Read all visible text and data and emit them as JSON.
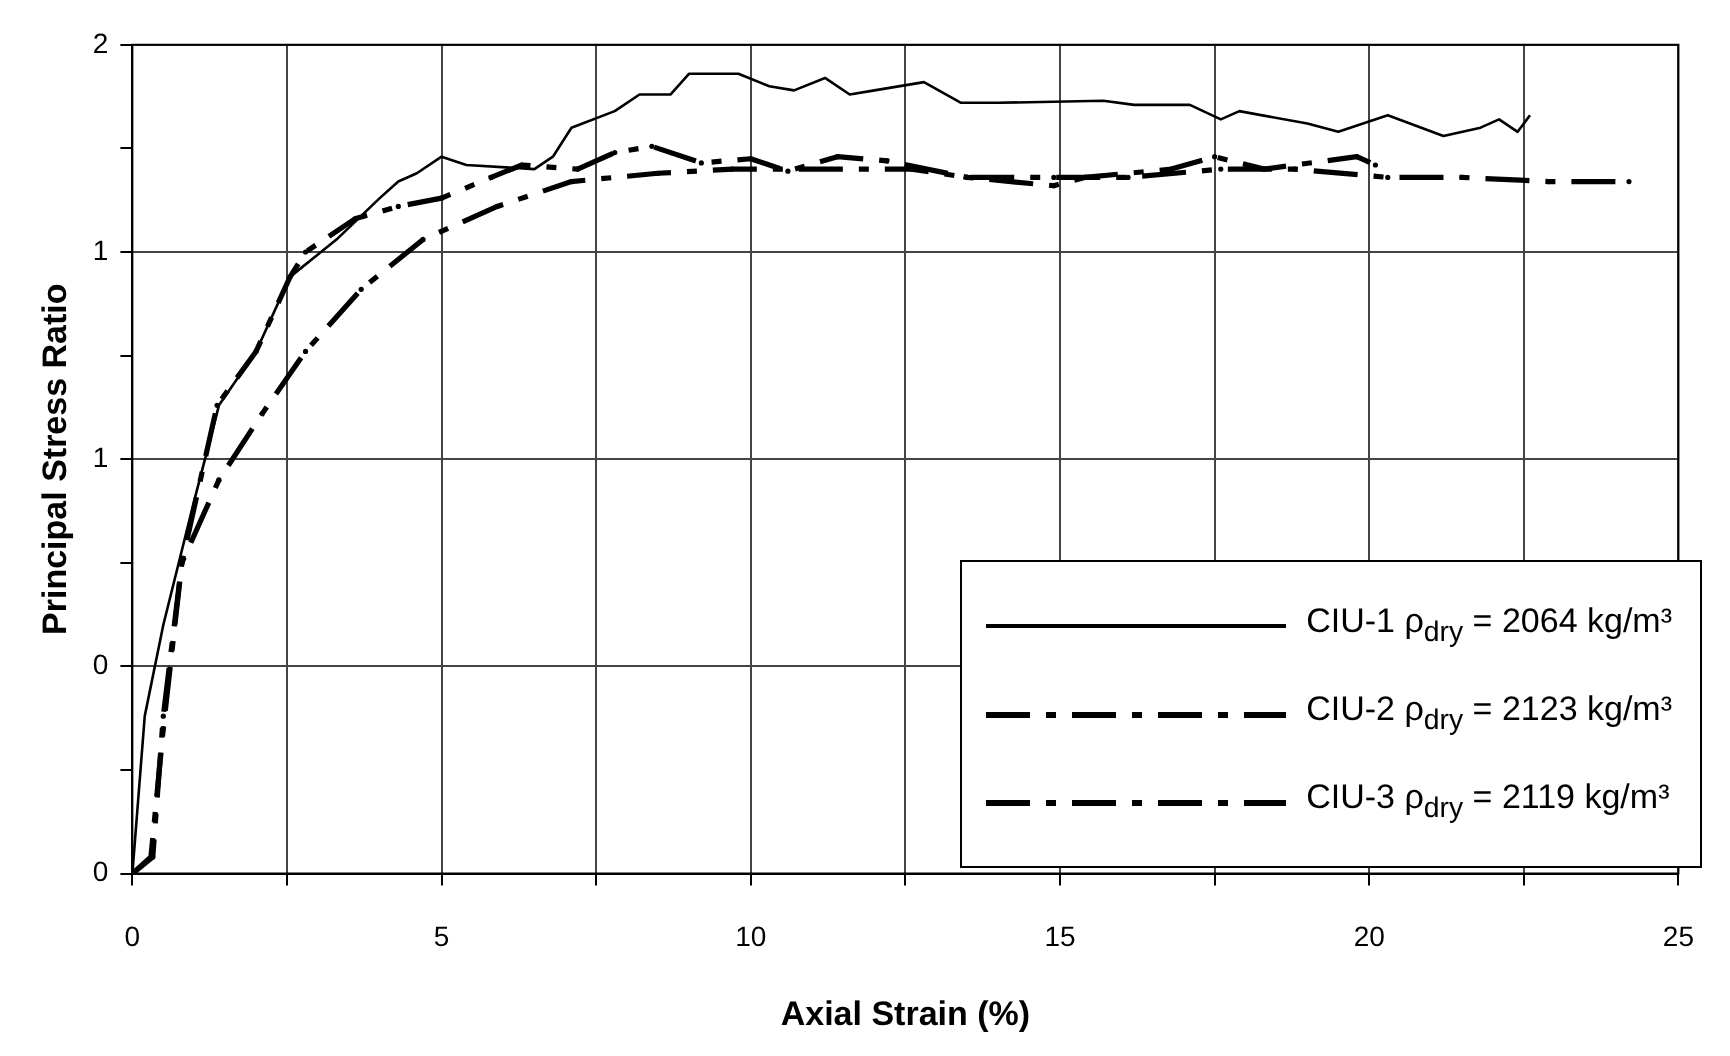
{
  "chart_data": {
    "type": "line",
    "xlabel": "Axial Strain (%)",
    "ylabel": "Principal Stress Ratio",
    "xlim": [
      0,
      25
    ],
    "xticks": [
      0,
      {
        "value": 2.5,
        "label": null
      },
      5,
      {
        "value": 7.5,
        "label": null
      },
      10,
      {
        "value": 12.5,
        "label": null
      },
      15,
      {
        "value": 17.5,
        "label": null
      },
      20,
      {
        "value": 22.5,
        "label": null
      },
      25
    ],
    "ylim": [
      0,
      2
    ],
    "yticks": [
      0,
      {
        "value": 0.25,
        "label": null
      },
      {
        "value": 0.5,
        "label": "0"
      },
      {
        "value": 0.75,
        "label": null
      },
      1,
      {
        "value": 1.25,
        "label": null
      },
      {
        "value": 1.5,
        "label": "1"
      },
      {
        "value": 1.75,
        "label": null
      },
      2
    ],
    "grid": true,
    "legend": "bottom right",
    "marker": "none",
    "series": [
      {
        "name": "CIU-1 ρ$_{dry}$ = 2064 kg/m³",
        "color": "#000000",
        "line_style": "solid",
        "x": [
          0,
          0.2,
          0.5,
          1.0,
          1.4,
          2.0,
          2.55,
          3.3,
          4.0,
          4.3,
          4.6,
          5.0,
          5.4,
          6.5,
          6.8,
          7.1,
          7.8,
          8.2,
          8.7,
          9.0,
          9.8,
          10.3,
          10.7,
          11.2,
          11.6,
          12.0,
          12.8,
          13.4,
          14.0,
          15.7,
          16.2,
          17.1,
          17.6,
          17.9,
          19.0,
          19.5,
          20.3,
          21.2,
          21.8,
          22.1,
          22.4,
          22.6
        ],
        "values": [
          0,
          0.38,
          0.6,
          0.9,
          1.13,
          1.26,
          1.44,
          1.53,
          1.63,
          1.67,
          1.69,
          1.73,
          1.71,
          1.7,
          1.73,
          1.8,
          1.84,
          1.88,
          1.88,
          1.93,
          1.93,
          1.9,
          1.89,
          1.92,
          1.88,
          1.89,
          1.91,
          1.86,
          1.86,
          1.865,
          1.855,
          1.855,
          1.82,
          1.84,
          1.81,
          1.79,
          1.83,
          1.78,
          1.8,
          1.82,
          1.79,
          1.83
        ]
      },
      {
        "name": "CIU-2 ρ$_{dry}$ = 2123 kg/m³",
        "color": "#000000",
        "line_style": "dashed",
        "x": [
          0,
          0.33,
          0.5,
          0.8,
          1.4,
          2.1,
          2.8,
          3.7,
          4.7,
          5.9,
          7.1,
          8.5,
          9.7,
          12.6,
          13.5,
          14.9,
          16.1,
          17.6,
          18.8,
          20.3,
          21.5,
          22.9,
          24.2
        ],
        "values": [
          0,
          0.04,
          0.38,
          0.75,
          0.95,
          1.11,
          1.26,
          1.41,
          1.53,
          1.61,
          1.67,
          1.69,
          1.7,
          1.7,
          1.68,
          1.68,
          1.68,
          1.7,
          1.7,
          1.68,
          1.68,
          1.67,
          1.67
        ]
      },
      {
        "name": "CIU-3 ρ$_{dry}$ = 2119 kg/m³",
        "color": "#000000",
        "line_style": "dashed",
        "x": [
          0,
          0.3,
          0.5,
          0.8,
          1.37,
          2.0,
          2.55,
          2.8,
          3.6,
          4.3,
          5.0,
          5.8,
          6.3,
          7.2,
          7.8,
          8.4,
          9.2,
          10.0,
          10.6,
          11.4,
          12.2,
          13.5,
          14.9,
          15.4,
          16.8,
          17.5,
          18.3,
          19.8,
          20.1
        ],
        "values": [
          0,
          0.04,
          0.35,
          0.75,
          1.13,
          1.26,
          1.44,
          1.5,
          1.58,
          1.61,
          1.63,
          1.68,
          1.71,
          1.7,
          1.74,
          1.755,
          1.715,
          1.725,
          1.695,
          1.73,
          1.72,
          1.68,
          1.66,
          1.68,
          1.7,
          1.73,
          1.7,
          1.73,
          1.71
        ]
      }
    ]
  }
}
